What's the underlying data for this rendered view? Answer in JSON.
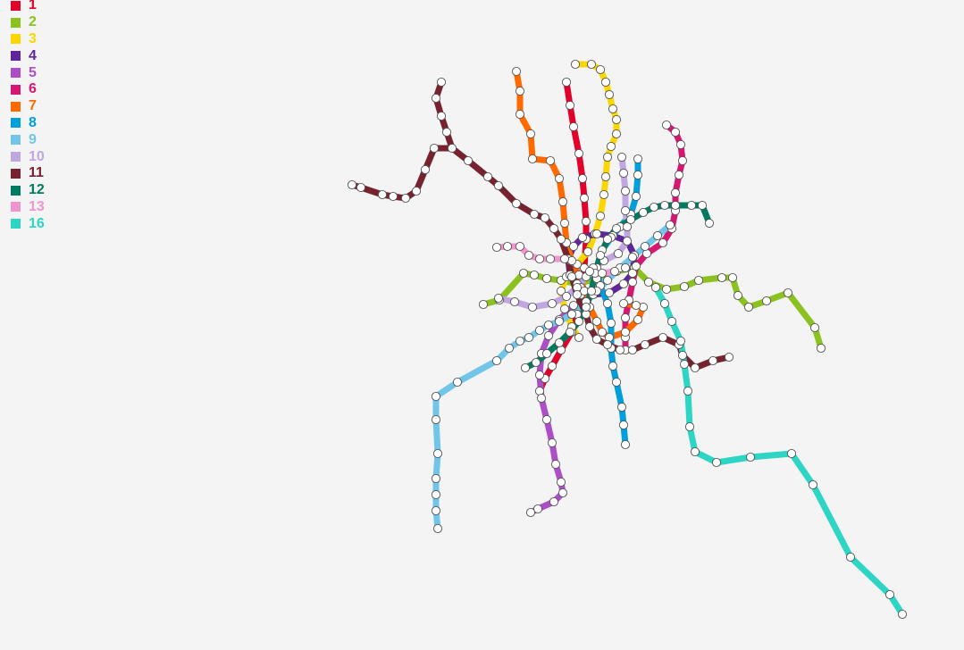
{
  "legend": [
    {
      "label": "1",
      "color": "#e3002b"
    },
    {
      "label": "2",
      "color": "#8cc220"
    },
    {
      "label": "3",
      "color": "#fcd600"
    },
    {
      "label": "4",
      "color": "#5f259f"
    },
    {
      "label": "5",
      "color": "#ac4fc6"
    },
    {
      "label": "6",
      "color": "#d71671"
    },
    {
      "label": "7",
      "color": "#ff6900"
    },
    {
      "label": "8",
      "color": "#009eda"
    },
    {
      "label": "9",
      "color": "#71c5e8"
    },
    {
      "label": "10",
      "color": "#c1a7e2"
    },
    {
      "label": "11",
      "color": "#76232f"
    },
    {
      "label": "12",
      "color": "#007b5f"
    },
    {
      "label": "13",
      "color": "#ef95cf"
    },
    {
      "label": "16",
      "color": "#2cd5c4"
    }
  ],
  "map": {
    "background": "#f4f4f4",
    "station_fill": "#ffffff",
    "station_stroke": "#555555"
  }
}
